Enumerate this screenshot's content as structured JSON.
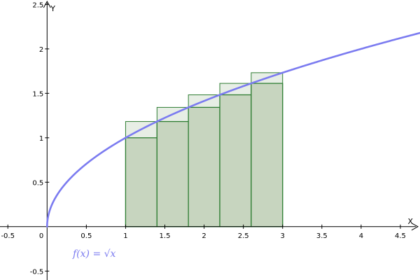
{
  "chart_data": {
    "type": "area",
    "function": "sqrt",
    "function_label": "f(x) = √x",
    "xlabel": "X",
    "ylabel": "Y",
    "xlim": [
      -0.6,
      4.75
    ],
    "ylim": [
      -0.6,
      2.55
    ],
    "x_ticks": [
      -0.5,
      0.5,
      1,
      1.5,
      2,
      2.5,
      3,
      3.5,
      4,
      4.5
    ],
    "y_ticks": [
      -0.5,
      0.5,
      1,
      1.5,
      2,
      2.5
    ],
    "origin_label": "0",
    "grid": false,
    "interval": [
      1,
      3
    ],
    "subintervals": 5,
    "partition": [
      1,
      1.4,
      1.8,
      2.2,
      2.6,
      3
    ],
    "lower_sum_heights": [
      1,
      1.183,
      1.342,
      1.483,
      1.612
    ],
    "upper_sum_heights": [
      1.183,
      1.342,
      1.483,
      1.612,
      1.732
    ],
    "colors": {
      "curve": "#7b7bf0",
      "lower_fill": "#c7d5bf",
      "upper_fill": "#e3ebe0",
      "rect_stroke": "#2e7d32",
      "axis": "#000000"
    }
  }
}
